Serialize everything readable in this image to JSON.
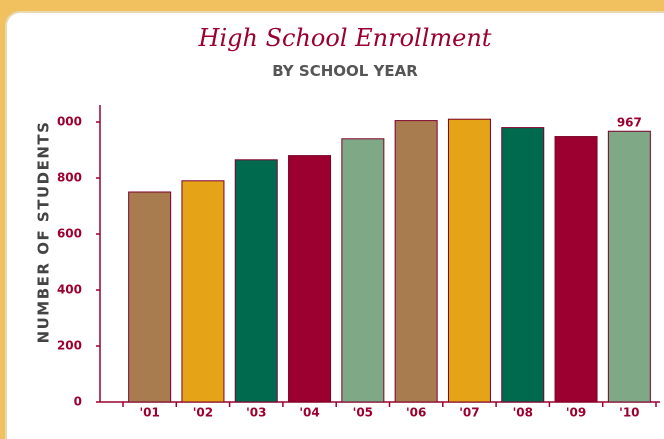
{
  "chart_data": {
    "type": "bar",
    "title": "High School Enrollment",
    "subtitle": "BY SCHOOL YEAR",
    "y_label": "NUMBER OF STUDENTS",
    "categories": [
      "'01",
      "'02",
      "'03",
      "'04",
      "'05",
      "'06",
      "'07",
      "'08",
      "'09",
      "'10"
    ],
    "values": [
      750,
      790,
      865,
      880,
      940,
      1005,
      1010,
      980,
      948,
      967
    ],
    "colors": [
      "#a97c50",
      "#e5a417",
      "#006a4e",
      "#9b0030",
      "#7fa886",
      "#a97c50",
      "#e5a417",
      "#006a4e",
      "#9b0030",
      "#7fa886"
    ],
    "show_value_label": "last",
    "ylim": [
      0,
      1000
    ],
    "yticks": [
      0,
      200,
      400,
      600,
      800,
      {
        "value": 1000,
        "label": "000"
      }
    ],
    "grid": false
  }
}
